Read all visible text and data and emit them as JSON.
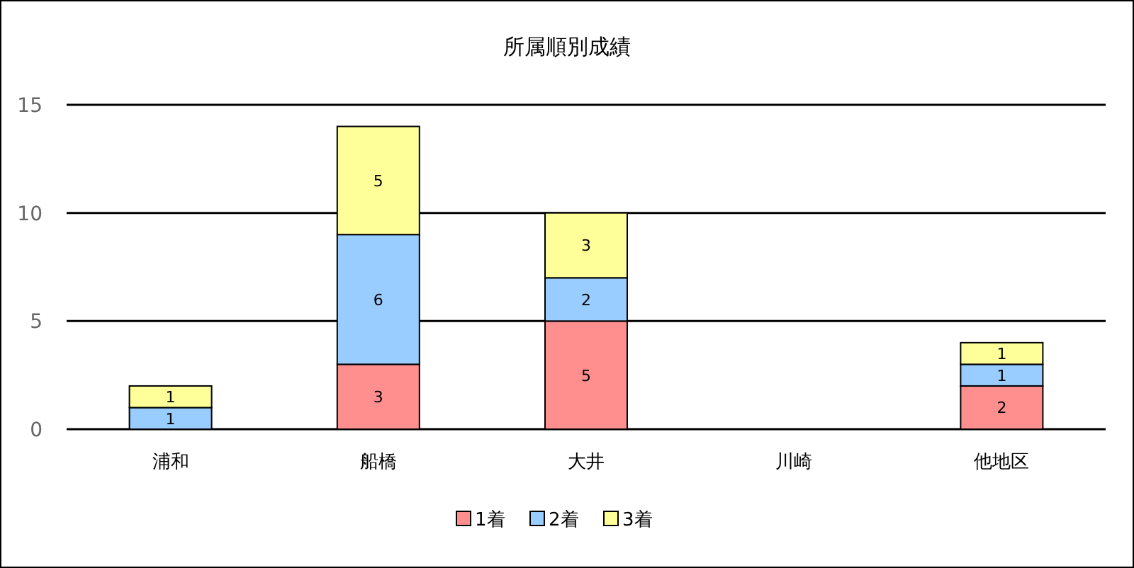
{
  "chart_data": {
    "type": "bar",
    "title": "所属順別成績",
    "stacked": true,
    "categories": [
      "浦和",
      "船橋",
      "大井",
      "川崎",
      "他地区"
    ],
    "series": [
      {
        "name": "1着",
        "color": "#ff8f8f",
        "values": [
          null,
          3,
          5,
          null,
          2
        ]
      },
      {
        "name": "2着",
        "color": "#99ccff",
        "values": [
          1,
          6,
          2,
          null,
          1
        ]
      },
      {
        "name": "3着",
        "color": "#ffff99",
        "values": [
          1,
          5,
          3,
          null,
          1
        ]
      }
    ],
    "ylim": [
      0,
      15
    ],
    "yticks": [
      0,
      5,
      10,
      15
    ],
    "grid": "y",
    "legend": "bottom",
    "data_labels": true
  }
}
